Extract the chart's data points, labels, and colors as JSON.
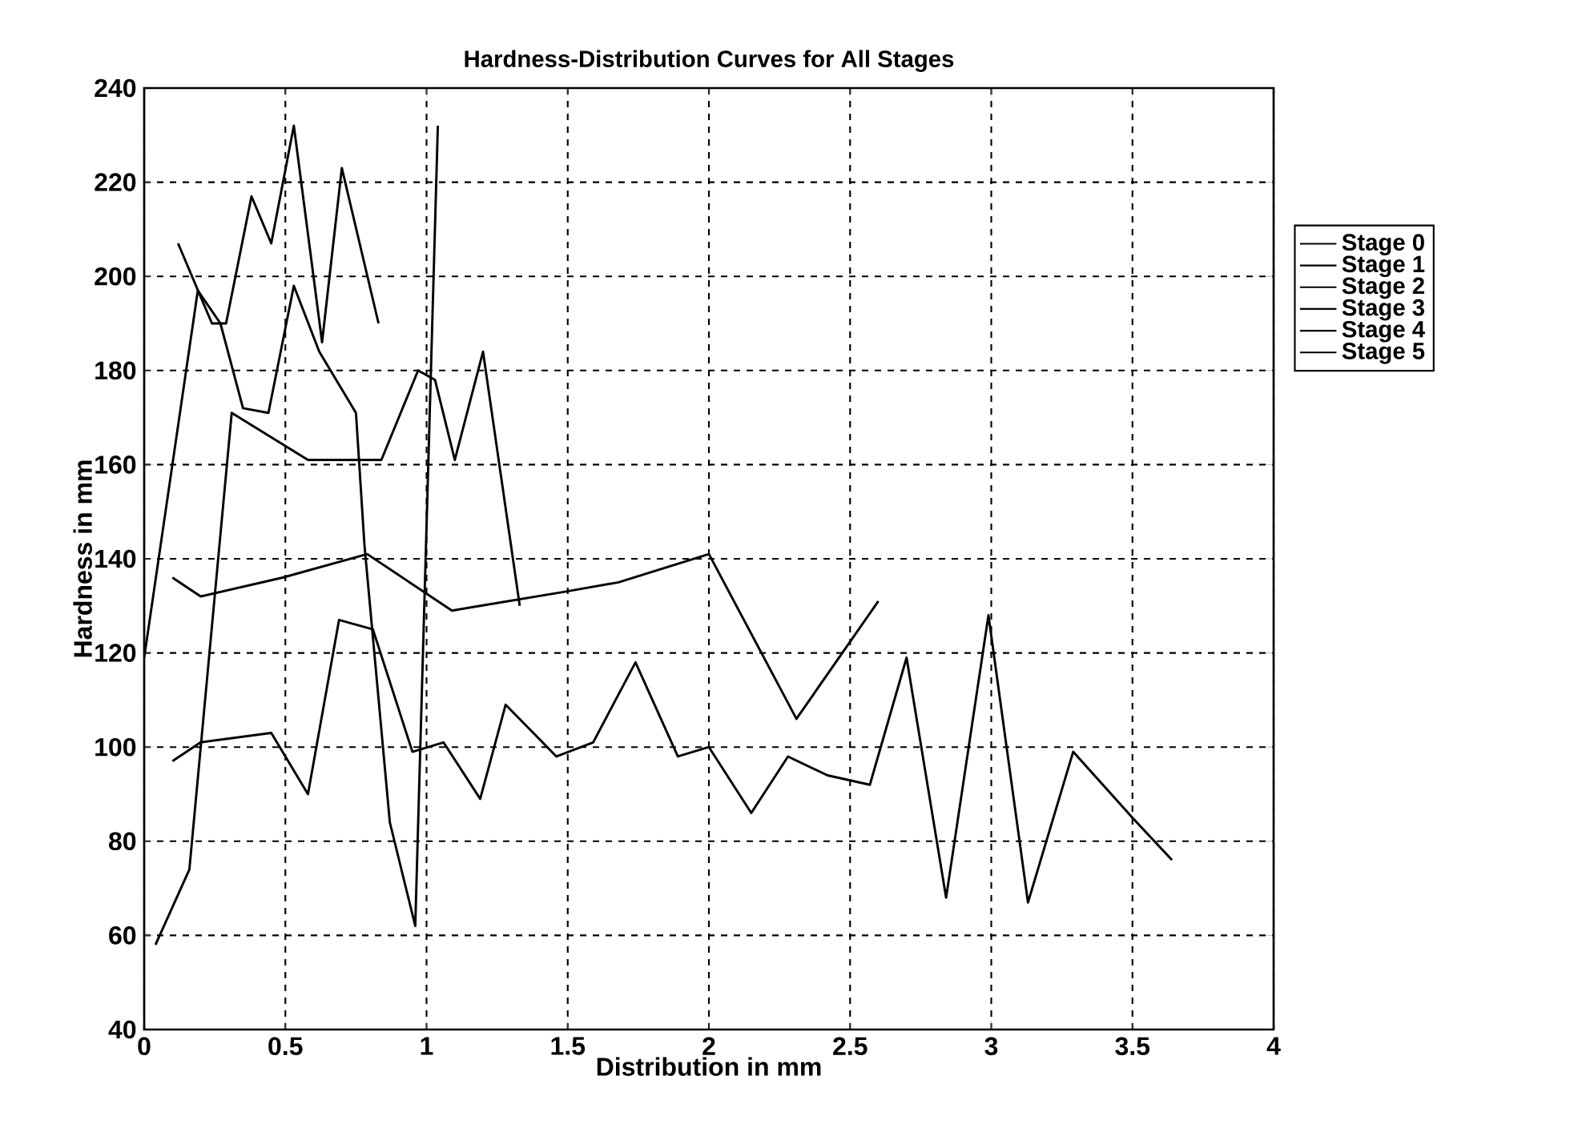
{
  "chart_data": {
    "type": "line",
    "title": "Hardness-Distribution Curves for All Stages",
    "xlabel": "Distribution in mm",
    "ylabel": "Hardness in mm",
    "xlim": [
      0,
      4
    ],
    "ylim": [
      40,
      240
    ],
    "xticks": [
      0,
      0.5,
      1,
      1.5,
      2,
      2.5,
      3,
      3.5,
      4
    ],
    "yticks": [
      40,
      60,
      80,
      100,
      120,
      140,
      160,
      180,
      200,
      220,
      240
    ],
    "grid": true,
    "legend": "top right",
    "marker": "none",
    "line_style": "solid",
    "series": [
      {
        "name": "Stage 0",
        "color": "#000000",
        "x": [
          0,
          0.19,
          0.27,
          0.35,
          0.44,
          0.53,
          0.62,
          0.75
        ],
        "values": [
          119,
          197,
          190,
          172,
          171,
          198,
          184,
          171
        ]
      },
      {
        "name": "Stage 1",
        "color": "#000000",
        "x": [
          0.12,
          0.24,
          0.29,
          0.38,
          0.45,
          0.53,
          0.63,
          0.7,
          0.83
        ],
        "values": [
          207,
          190,
          190,
          217,
          207,
          232,
          186,
          223,
          190
        ]
      },
      {
        "name": "Stage 2",
        "color": "#000000",
        "x": [
          0.04,
          0.16,
          0.31,
          0.58,
          0.84,
          0.97,
          1.03,
          1.1,
          1.2,
          1.33
        ],
        "values": [
          58,
          74,
          171,
          161,
          161,
          180,
          178,
          161,
          184,
          130
        ]
      },
      {
        "name": "Stage 3",
        "color": "#000000",
        "x": [
          0.1,
          0.2,
          0.49,
          0.79,
          1.09,
          1.19,
          1.49,
          1.68,
          2.0,
          2.31,
          2.6
        ],
        "values": [
          136,
          132,
          136,
          141,
          129,
          130,
          133,
          135,
          141,
          106,
          131
        ]
      },
      {
        "name": "Stage 4",
        "color": "#000000",
        "x": [
          0.75,
          0.78,
          0.87,
          0.96,
          1.04
        ],
        "values": [
          171,
          143,
          84,
          62,
          232
        ]
      },
      {
        "name": "Stage 5",
        "color": "#000000",
        "x": [
          0.1,
          0.2,
          0.45,
          0.58,
          0.69,
          0.81,
          0.95,
          1.06,
          1.19,
          1.28,
          1.46,
          1.59,
          1.74,
          1.89,
          2.0,
          2.15,
          2.28,
          2.42,
          2.57,
          2.7,
          2.84,
          2.99,
          3.13,
          3.29,
          3.5,
          3.64
        ],
        "values": [
          97,
          101,
          103,
          90,
          127,
          125,
          99,
          101,
          89,
          109,
          98,
          101,
          118,
          98,
          100,
          86,
          98,
          94,
          92,
          119,
          68,
          128,
          67,
          99,
          85,
          76
        ]
      }
    ]
  }
}
